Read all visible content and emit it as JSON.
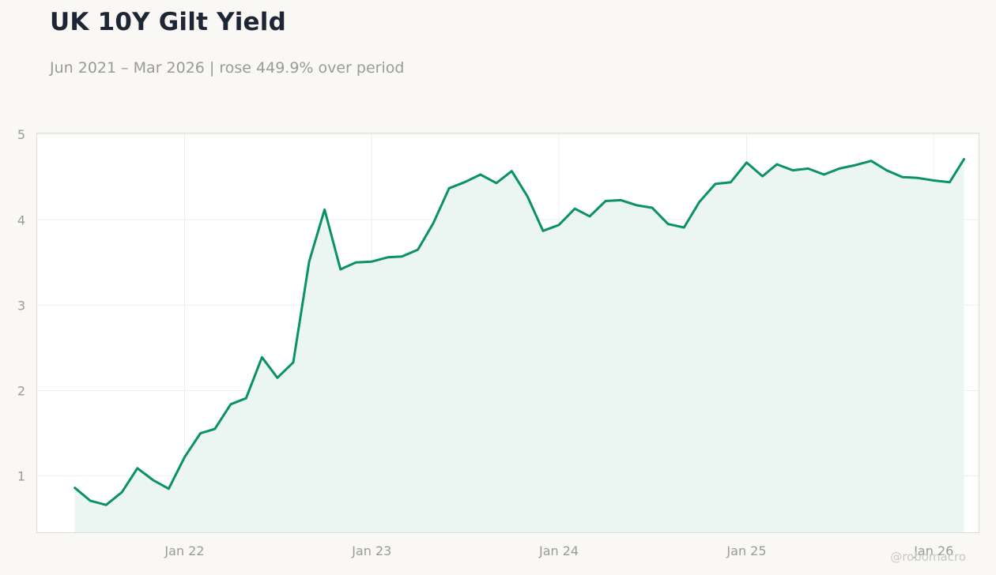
{
  "chart_data": {
    "type": "area",
    "title": "UK 10Y Gilt Yield",
    "subtitle": "Jun 2021 – Mar 2026 | rose 449.9% over period",
    "xlabel": "",
    "ylabel": "",
    "ylim": [
      0.33,
      5.02
    ],
    "yticks": [
      1,
      2,
      3,
      4,
      5
    ],
    "xlim": [
      "2021-03-18",
      "2026-03-31"
    ],
    "xticks": [
      {
        "date": "2022-01-01",
        "label": "Jan 22"
      },
      {
        "date": "2023-01-01",
        "label": "Jan 23"
      },
      {
        "date": "2024-01-01",
        "label": "Jan 24"
      },
      {
        "date": "2025-01-01",
        "label": "Jan 25"
      },
      {
        "date": "2026-01-01",
        "label": "Jan 26"
      }
    ],
    "grid": true,
    "legend": "none",
    "series": [
      {
        "color": "#0a9165",
        "fill": "#e9f4ef",
        "x": [
          "2021-06-01",
          "2021-07-01",
          "2021-08-01",
          "2021-09-01",
          "2021-10-01",
          "2021-11-01",
          "2021-12-01",
          "2022-01-01",
          "2022-02-01",
          "2022-03-01",
          "2022-04-01",
          "2022-05-01",
          "2022-06-01",
          "2022-07-01",
          "2022-08-01",
          "2022-09-01",
          "2022-10-01",
          "2022-11-01",
          "2022-12-01",
          "2023-01-01",
          "2023-02-01",
          "2023-03-01",
          "2023-04-01",
          "2023-05-01",
          "2023-06-01",
          "2023-07-01",
          "2023-08-01",
          "2023-09-01",
          "2023-10-01",
          "2023-11-01",
          "2023-12-01",
          "2024-01-01",
          "2024-02-01",
          "2024-03-01",
          "2024-04-01",
          "2024-05-01",
          "2024-06-01",
          "2024-07-01",
          "2024-08-01",
          "2024-09-01",
          "2024-10-01",
          "2024-11-01",
          "2024-12-01",
          "2025-01-01",
          "2025-02-01",
          "2025-03-01",
          "2025-04-01",
          "2025-05-01",
          "2025-06-01",
          "2025-07-01",
          "2025-08-01",
          "2025-09-01",
          "2025-10-01",
          "2025-11-01",
          "2025-12-01",
          "2026-01-01",
          "2026-02-01",
          "2026-03-01"
        ],
        "values": [
          0.86,
          0.71,
          0.66,
          0.81,
          1.09,
          0.95,
          0.85,
          1.22,
          1.5,
          1.55,
          1.84,
          1.91,
          2.39,
          2.15,
          2.33,
          3.51,
          4.12,
          3.42,
          3.5,
          3.51,
          3.56,
          3.57,
          3.65,
          3.96,
          4.37,
          4.44,
          4.53,
          4.43,
          4.57,
          4.27,
          3.87,
          3.94,
          4.13,
          4.04,
          4.22,
          4.23,
          4.17,
          4.14,
          3.95,
          3.91,
          4.21,
          4.42,
          4.44,
          4.67,
          4.51,
          4.65,
          4.58,
          4.6,
          4.53,
          4.6,
          4.64,
          4.69,
          4.58,
          4.5,
          4.49,
          4.46,
          4.44,
          4.71
        ]
      }
    ]
  },
  "watermark": "@robomacro"
}
